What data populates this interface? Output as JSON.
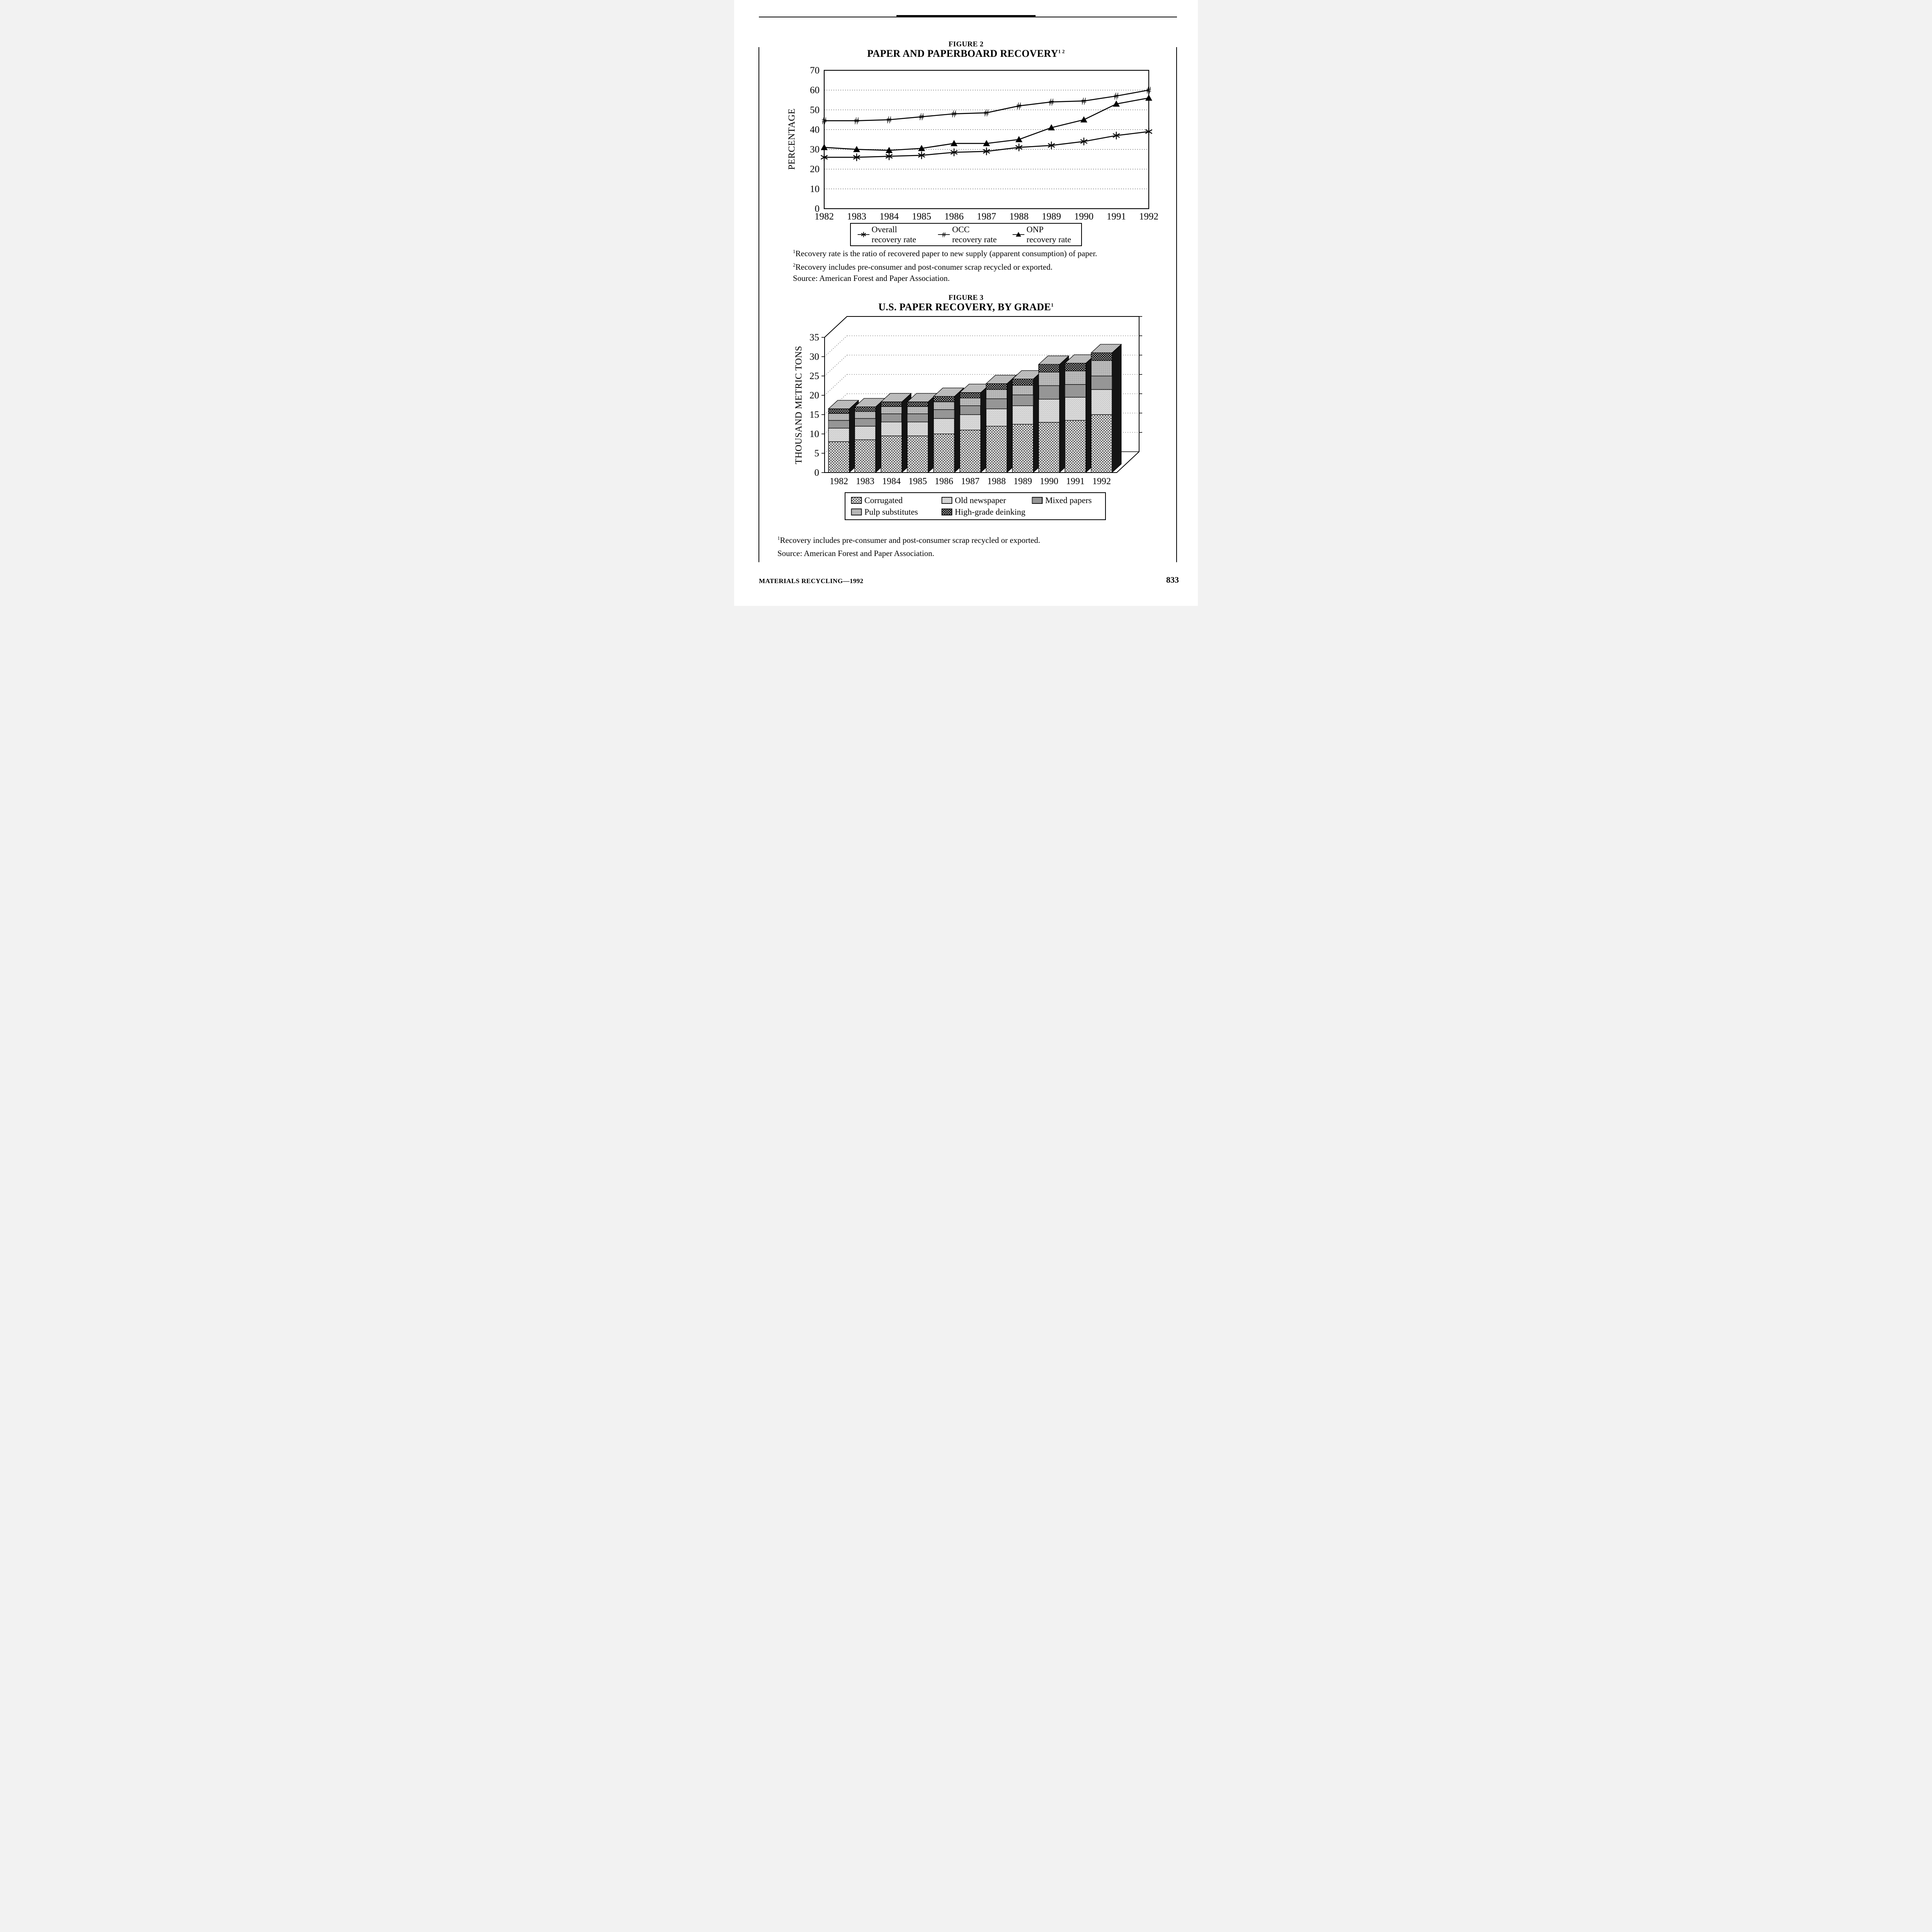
{
  "page": {
    "footer_left": "MATERIALS RECYCLING—1992",
    "page_number": "833"
  },
  "figure2": {
    "label": "FIGURE 2",
    "title": "PAPER AND PAPERBOARD RECOVERY",
    "title_sup": "1 2",
    "footnote1_sup": "1",
    "footnote1": "Recovery rate is the ratio of recovered paper to new supply (apparent consumption) of paper.",
    "footnote2_sup": "2",
    "footnote2": "Recovery includes pre-consumer and post-conumer scrap recycled or exported.",
    "source": "Source:  American Forest and Paper Association."
  },
  "figure3": {
    "label": "FIGURE 3",
    "title": "U.S. PAPER RECOVERY, BY GRADE",
    "title_sup": "1",
    "footnote1_sup": "1",
    "footnote1": "Recovery includes pre-consumer and post-consumer scrap recycled or exported.",
    "source": "Source:  American Forest and Paper Association."
  },
  "chart_data": [
    {
      "type": "line",
      "title": "PAPER AND PAPERBOARD RECOVERY",
      "xlabel": "",
      "ylabel": "PERCENTAGE",
      "ylim": [
        0,
        70
      ],
      "ytick_step": 10,
      "grid": "horizontal-dotted",
      "legend_position": "bottom",
      "categories": [
        "1982",
        "1983",
        "1984",
        "1985",
        "1986",
        "1987",
        "1988",
        "1989",
        "1990",
        "1991",
        "1992"
      ],
      "series": [
        {
          "name": "Overall recovery rate",
          "marker": "star",
          "values": [
            26,
            26,
            26.5,
            27,
            28.5,
            29,
            31,
            32,
            34,
            37,
            39
          ]
        },
        {
          "name": "OCC recovery rate",
          "marker": "hash",
          "values": [
            44.5,
            44.5,
            45,
            46.5,
            48,
            48.5,
            52,
            54,
            54.5,
            57,
            60
          ]
        },
        {
          "name": "ONP recovery rate",
          "marker": "triangle",
          "values": [
            31,
            30,
            29.5,
            30.5,
            33,
            33,
            35,
            41,
            45,
            53,
            56
          ]
        }
      ]
    },
    {
      "type": "bar",
      "subtype": "3d-stacked",
      "title": "U.S. PAPER RECOVERY, BY GRADE",
      "xlabel": "",
      "ylabel": "THOUSAND METRIC TONS",
      "ylim": [
        0,
        35
      ],
      "ytick_step": 5,
      "grid": "horizontal-dotted",
      "legend_position": "bottom",
      "categories": [
        "1982",
        "1983",
        "1984",
        "1985",
        "1986",
        "1987",
        "1988",
        "1989",
        "1990",
        "1991",
        "1992"
      ],
      "series": [
        {
          "name": "Corrugated",
          "pattern": "crosshatch",
          "values": [
            8,
            8.5,
            9.5,
            9.5,
            10,
            11,
            12,
            12.5,
            13,
            13.5,
            15
          ]
        },
        {
          "name": "Old newspaper",
          "pattern": "stipple-light",
          "values": [
            3.5,
            3.5,
            3.6,
            3.6,
            4,
            4,
            4.5,
            4.8,
            6,
            6,
            6.5
          ]
        },
        {
          "name": "Mixed papers",
          "pattern": "vertical-lines",
          "values": [
            2,
            2,
            2.1,
            2.1,
            2.3,
            2.3,
            2.6,
            2.8,
            3.5,
            3.3,
            3.5
          ]
        },
        {
          "name": "Pulp substitutes",
          "pattern": "gray",
          "values": [
            1.8,
            1.8,
            1.9,
            1.9,
            2,
            2,
            2.4,
            2.5,
            3.5,
            3.5,
            4
          ]
        },
        {
          "name": "High-grade deinking",
          "pattern": "dark-waffle",
          "values": [
            1.2,
            1.2,
            1.2,
            1.2,
            1.4,
            1.4,
            1.5,
            1.6,
            2,
            2,
            2
          ]
        }
      ]
    }
  ]
}
